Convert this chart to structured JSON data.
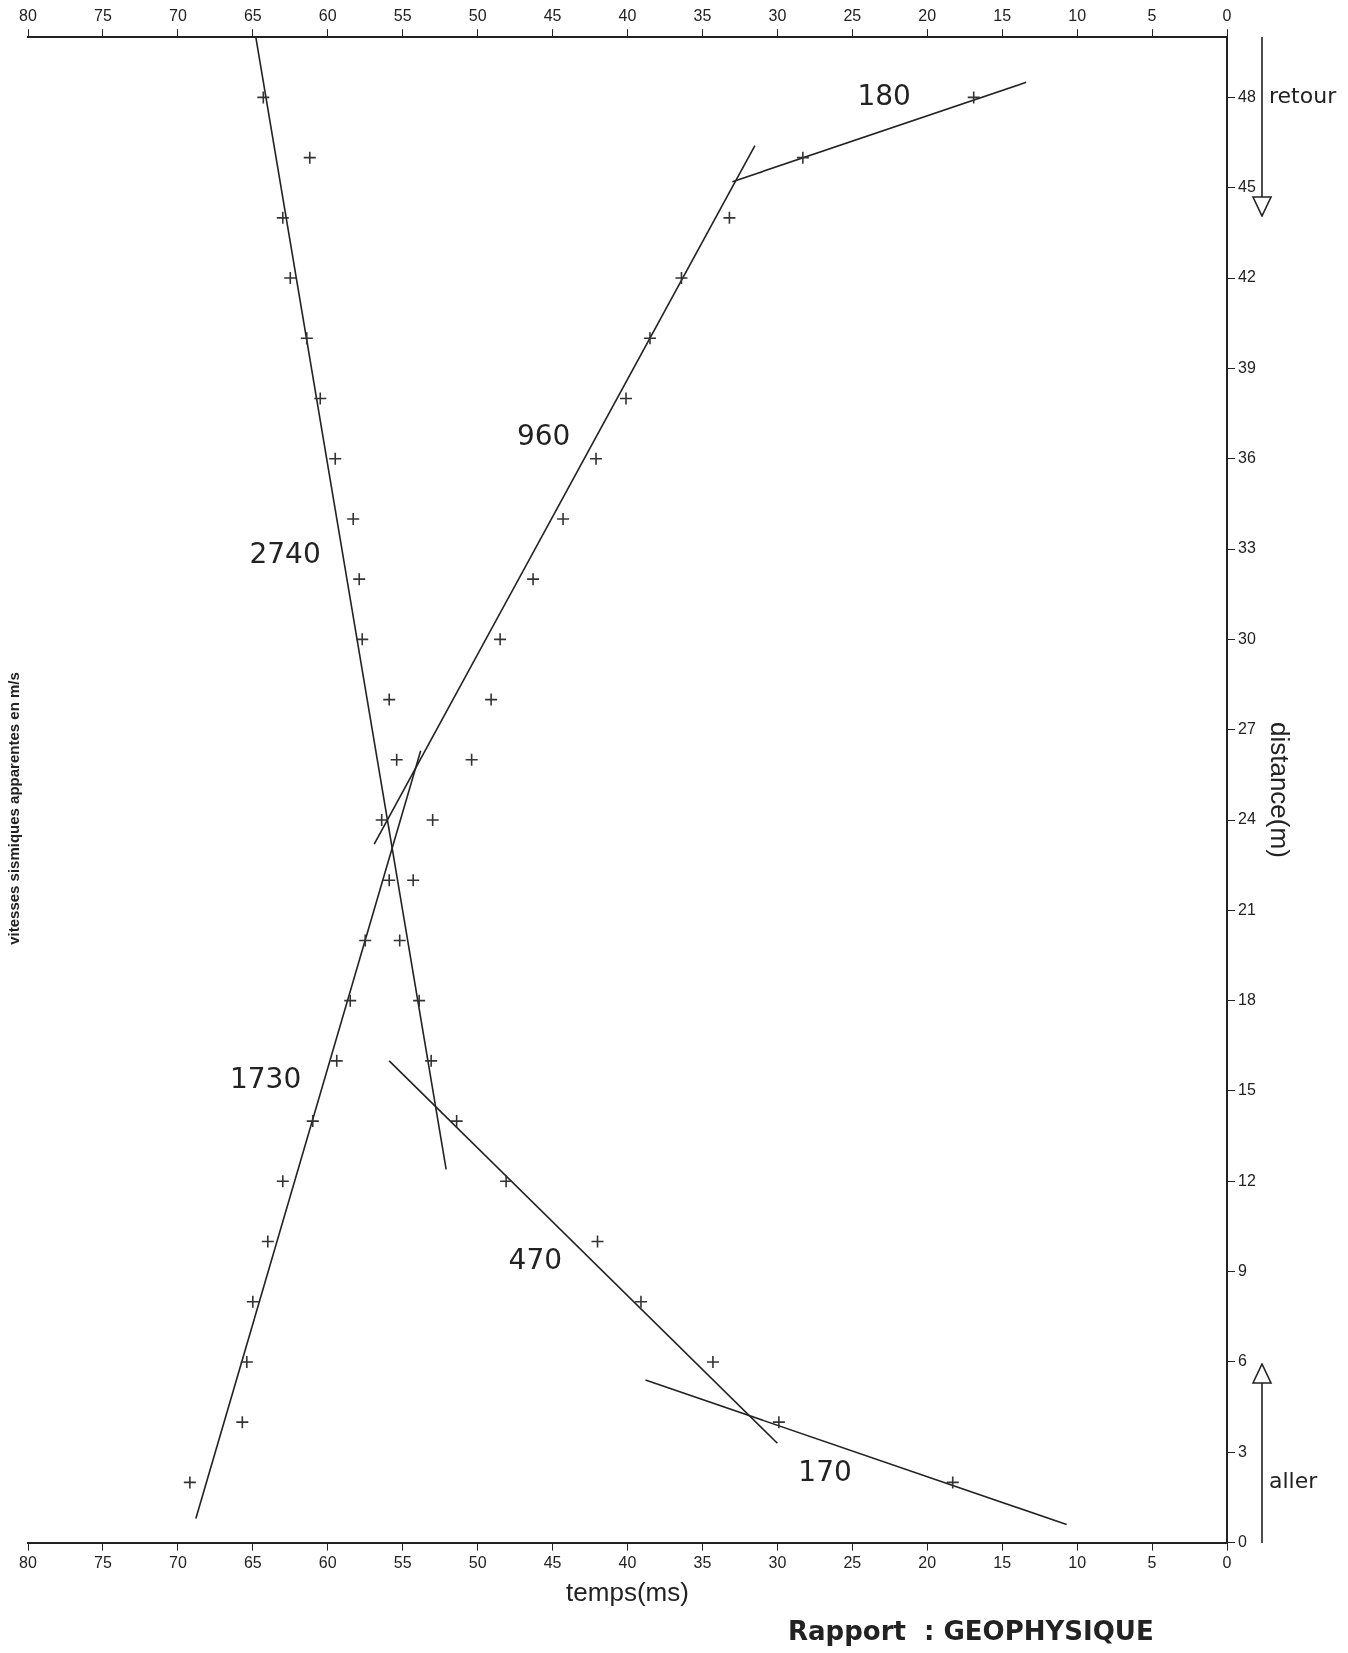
{
  "chart_data": {
    "type": "scatter",
    "title": "vitesses sismiques apparentes en m/s",
    "xlabel": "temps(ms)",
    "ylabel": "distance(m)",
    "xlim": [
      80,
      0
    ],
    "xticks": [
      80,
      75,
      70,
      65,
      60,
      55,
      50,
      45,
      40,
      35,
      30,
      25,
      20,
      15,
      10,
      5,
      0
    ],
    "x2lim": [
      80,
      0
    ],
    "x2ticks": [
      80,
      75,
      70,
      65,
      60,
      55,
      50,
      45,
      40,
      35,
      30,
      25,
      20,
      15,
      10,
      5,
      0
    ],
    "ylim": [
      0,
      50
    ],
    "yticks": [
      0,
      3,
      6,
      9,
      12,
      15,
      18,
      21,
      24,
      27,
      30,
      33,
      36,
      39,
      42,
      45,
      48
    ],
    "grid": false,
    "marker": "cross",
    "line_style": "solid",
    "series": [
      {
        "color": "#333333",
        "x": [
          18.3,
          29.9,
          34.3,
          39.1,
          42,
          48.1,
          51.4,
          53.1,
          53.9,
          55.2,
          55.9,
          56.4,
          55.4,
          55.9,
          57.7,
          57.9,
          58.3,
          59.5,
          60.5,
          61.4,
          62.5,
          63,
          61.2,
          64.3
        ],
        "values": [
          2,
          4,
          6,
          8,
          10,
          12,
          14,
          16,
          18,
          20,
          22,
          24,
          26,
          28,
          30,
          32,
          34,
          36,
          38,
          40,
          42,
          44,
          46,
          48
        ]
      },
      {
        "color": "#333333",
        "x": [
          69.2,
          65.7,
          65.4,
          65,
          64,
          63,
          61,
          59.4,
          58.5,
          57.5,
          54.3,
          53,
          50.4,
          49.1,
          48.5,
          46.3,
          44.3,
          42.1,
          40.1,
          38.5,
          36.4,
          33.2,
          28.3,
          16.9
        ],
        "values": [
          2,
          4,
          6,
          8,
          10,
          12,
          14,
          16,
          18,
          20,
          22,
          24,
          26,
          28,
          30,
          32,
          34,
          36,
          38,
          40,
          42,
          44,
          46,
          48
        ]
      },
      {
        "type": "line",
        "color": "#222222",
        "marker": "none",
        "x": [
          10.7,
          38.8
        ],
        "values": [
          0.6,
          5.4
        ]
      },
      {
        "type": "line",
        "color": "#222222",
        "marker": "none",
        "x": [
          30,
          55.9
        ],
        "values": [
          3.3,
          16
        ]
      },
      {
        "type": "line",
        "color": "#222222",
        "marker": "none",
        "x": [
          68.8,
          53.8
        ],
        "values": [
          0.8,
          26.3
        ]
      },
      {
        "type": "line",
        "color": "#222222",
        "marker": "none",
        "x": [
          52.1,
          64.8
        ],
        "values": [
          12.4,
          50
        ]
      },
      {
        "type": "line",
        "color": "#222222",
        "marker": "none",
        "x": [
          56.9,
          31.5
        ],
        "values": [
          23.2,
          46.4
        ]
      },
      {
        "type": "line",
        "color": "#222222",
        "marker": "none",
        "x": [
          33,
          13.4
        ],
        "values": [
          45.2,
          48.5
        ]
      }
    ],
    "annotations": [
      "170",
      "470",
      "1730",
      "2740",
      "960",
      "180",
      "aller",
      "retour",
      "Rapport  : GEOPHYSIQUE"
    ]
  }
}
